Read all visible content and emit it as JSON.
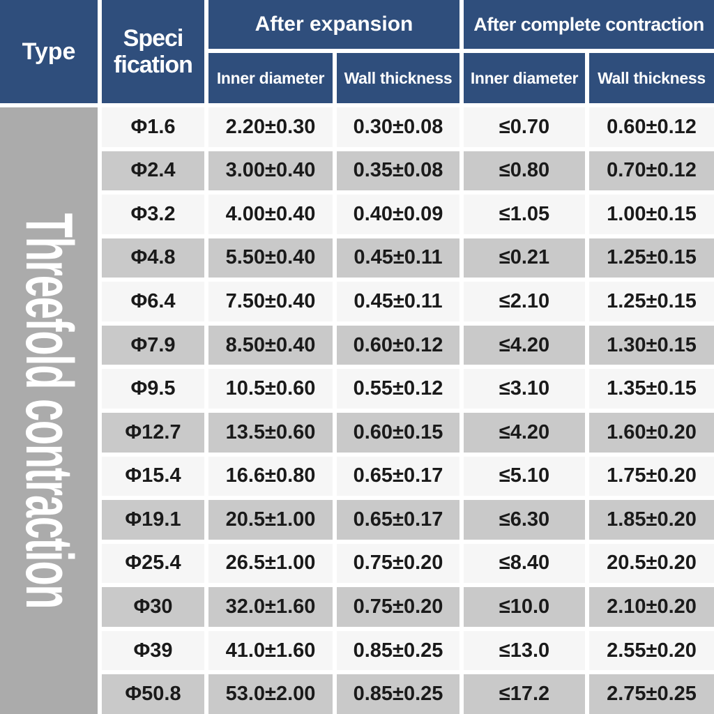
{
  "header": {
    "type": "Type",
    "specification_line1": "Speci",
    "specification_line2": "fication",
    "after_expansion": "After expansion",
    "after_complete_contraction": "After complete contraction",
    "inner_diameter": "Inner diameter",
    "wall_thickness": "Wall thickness"
  },
  "side_label": "Threefold contraction",
  "colors": {
    "header_blue": "#2f4e7c",
    "header_text": "#ffffff",
    "side_gray": "#ababab",
    "row_light": "#f6f6f6",
    "row_dark": "#c9c9c9",
    "separator": "#ffffff",
    "body_text": "#1a1a1a"
  },
  "chart_data": {
    "type": "table",
    "title": "",
    "row_group_label": "Threefold contraction",
    "column_groups": [
      "Type",
      "Specification",
      "After expansion",
      "After complete contraction"
    ],
    "columns": [
      "Specification",
      "After expansion - Inner diameter",
      "After expansion - Wall thickness",
      "After complete contraction - Inner diameter",
      "After complete contraction - Wall thickness"
    ],
    "rows": [
      [
        "Φ1.6",
        "2.20±0.30",
        "0.30±0.08",
        "≤0.70",
        "0.60±0.12"
      ],
      [
        "Φ2.4",
        "3.00±0.40",
        "0.35±0.08",
        "≤0.80",
        "0.70±0.12"
      ],
      [
        "Φ3.2",
        "4.00±0.40",
        "0.40±0.09",
        "≤1.05",
        "1.00±0.15"
      ],
      [
        "Φ4.8",
        "5.50±0.40",
        "0.45±0.11",
        "≤0.21",
        "1.25±0.15"
      ],
      [
        "Φ6.4",
        "7.50±0.40",
        "0.45±0.11",
        "≤2.10",
        "1.25±0.15"
      ],
      [
        "Φ7.9",
        "8.50±0.40",
        "0.60±0.12",
        "≤4.20",
        "1.30±0.15"
      ],
      [
        "Φ9.5",
        "10.5±0.60",
        "0.55±0.12",
        "≤3.10",
        "1.35±0.15"
      ],
      [
        "Φ12.7",
        "13.5±0.60",
        "0.60±0.15",
        "≤4.20",
        "1.60±0.20"
      ],
      [
        "Φ15.4",
        "16.6±0.80",
        "0.65±0.17",
        "≤5.10",
        "1.75±0.20"
      ],
      [
        "Φ19.1",
        "20.5±1.00",
        "0.65±0.17",
        "≤6.30",
        "1.85±0.20"
      ],
      [
        "Φ25.4",
        "26.5±1.00",
        "0.75±0.20",
        "≤8.40",
        "20.5±0.20"
      ],
      [
        "Φ30",
        "32.0±1.60",
        "0.75±0.20",
        "≤10.0",
        "2.10±0.20"
      ],
      [
        "Φ39",
        "41.0±1.60",
        "0.85±0.25",
        "≤13.0",
        "2.55±0.20"
      ],
      [
        "Φ50.8",
        "53.0±2.00",
        "0.85±0.25",
        "≤17.2",
        "2.75±0.25"
      ]
    ]
  }
}
